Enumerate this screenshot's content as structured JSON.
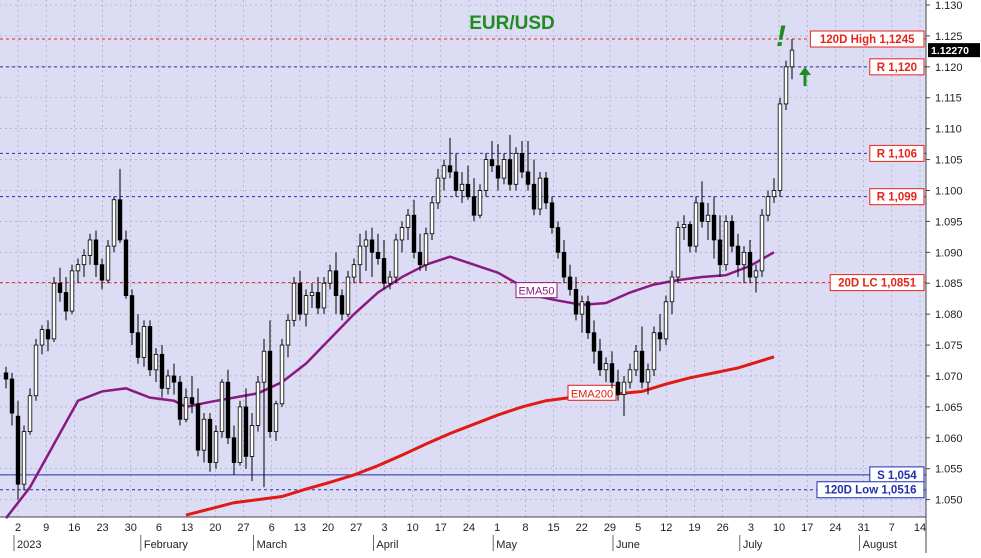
{
  "chart_data": {
    "type": "candlestick",
    "title": "EUR/USD",
    "y_axis": {
      "side": "right",
      "ylim": [
        1.048,
        1.13
      ],
      "ticks": [
        1.05,
        1.055,
        1.06,
        1.065,
        1.07,
        1.075,
        1.08,
        1.085,
        1.09,
        1.095,
        1.1,
        1.105,
        1.11,
        1.115,
        1.12,
        1.125,
        1.13
      ],
      "tick_labels": [
        "1.050",
        "1.055",
        "1.060",
        "1.065",
        "1.070",
        "1.075",
        "1.080",
        "1.085",
        "1.090",
        "1.095",
        "1.100",
        "1.105",
        "1.110",
        "1.115",
        "1.120",
        "1.125",
        "1.130"
      ]
    },
    "x_axis": {
      "day_labels": [
        {
          "t": 0,
          "label": "2"
        },
        {
          "t": 2,
          "label": "9"
        },
        {
          "t": 4,
          "label": "16"
        },
        {
          "t": 6,
          "label": "23"
        },
        {
          "t": 8,
          "label": "30"
        },
        {
          "t": 10,
          "label": "6"
        },
        {
          "t": 12,
          "label": "13"
        },
        {
          "t": 14,
          "label": "20"
        },
        {
          "t": 16,
          "label": "27"
        },
        {
          "t": 18,
          "label": "6"
        },
        {
          "t": 20,
          "label": "13"
        },
        {
          "t": 22,
          "label": "20"
        },
        {
          "t": 24,
          "label": "27"
        },
        {
          "t": 26,
          "label": "3"
        },
        {
          "t": 28,
          "label": "10"
        },
        {
          "t": 30,
          "label": "17"
        },
        {
          "t": 32,
          "label": "24"
        },
        {
          "t": 34,
          "label": "1"
        },
        {
          "t": 36,
          "label": "8"
        },
        {
          "t": 38,
          "label": "15"
        },
        {
          "t": 40,
          "label": "22"
        },
        {
          "t": 42,
          "label": "29"
        },
        {
          "t": 44,
          "label": "5"
        },
        {
          "t": 46,
          "label": "12"
        },
        {
          "t": 48,
          "label": "19"
        },
        {
          "t": 50,
          "label": "26"
        },
        {
          "t": 52,
          "label": "3"
        },
        {
          "t": 54,
          "label": "10"
        },
        {
          "t": 56,
          "label": "17"
        },
        {
          "t": 58,
          "label": "24"
        },
        {
          "t": 60,
          "label": "31"
        },
        {
          "t": 62,
          "label": "7"
        },
        {
          "t": 64,
          "label": "14"
        }
      ],
      "month_labels": [
        {
          "t": 0,
          "label": "2023"
        },
        {
          "t": 9,
          "label": "February"
        },
        {
          "t": 17,
          "label": "March"
        },
        {
          "t": 25.5,
          "label": "April"
        },
        {
          "t": 34,
          "label": "May"
        },
        {
          "t": 42.5,
          "label": "June"
        },
        {
          "t": 51.5,
          "label": "July"
        },
        {
          "t": 60,
          "label": "August"
        }
      ]
    },
    "levels": [
      {
        "label": "120D High 1,1245",
        "value": 1.1245,
        "color": "#e8231a",
        "style": "dashed"
      },
      {
        "label": "R 1,120",
        "value": 1.12,
        "color": "#e8231a",
        "style": "dashed",
        "line_color": "#2030b0"
      },
      {
        "label": "R 1,106",
        "value": 1.106,
        "color": "#e8231a",
        "style": "dashed",
        "line_color": "#2030b0"
      },
      {
        "label": "R 1,099",
        "value": 1.099,
        "color": "#e8231a",
        "style": "dashed",
        "line_color": "#2030b0"
      },
      {
        "label": "20D LC 1,0851",
        "value": 1.0851,
        "color": "#e8231a",
        "style": "dashed"
      },
      {
        "label": "S 1,054",
        "value": 1.054,
        "color": "#2030b0",
        "style": "solid"
      },
      {
        "label": "120D Low 1,0516",
        "value": 1.0516,
        "color": "#2030b0",
        "style": "dashed"
      }
    ],
    "last_price": {
      "label": "1.12270",
      "value": 1.1227
    },
    "annotations": {
      "exclamation": "!",
      "arrow": "up"
    },
    "ohlc": [
      [
        1.0705,
        1.0715,
        1.068,
        1.0695
      ],
      [
        1.0695,
        1.0705,
        1.062,
        1.064
      ],
      [
        1.0635,
        1.066,
        1.05,
        1.0525
      ],
      [
        1.0525,
        1.062,
        1.0515,
        1.061
      ],
      [
        1.061,
        1.068,
        1.0605,
        1.0668
      ],
      [
        1.0668,
        1.076,
        1.066,
        1.075
      ],
      [
        1.075,
        1.0782,
        1.0735,
        1.0775
      ],
      [
        1.0775,
        1.079,
        1.074,
        1.076
      ],
      [
        1.076,
        1.086,
        1.0755,
        1.085
      ],
      [
        1.085,
        1.0875,
        1.082,
        1.0835
      ],
      [
        1.0835,
        1.086,
        1.079,
        1.0805
      ],
      [
        1.0805,
        1.088,
        1.08,
        1.087
      ],
      [
        1.087,
        1.089,
        1.085,
        1.088
      ],
      [
        1.088,
        1.0905,
        1.086,
        1.0895
      ],
      [
        1.0895,
        1.093,
        1.088,
        1.092
      ],
      [
        1.092,
        1.0935,
        1.086,
        1.088
      ],
      [
        1.088,
        1.089,
        1.084,
        1.0855
      ],
      [
        1.0855,
        1.092,
        1.085,
        1.091
      ],
      [
        1.091,
        1.099,
        1.09,
        1.0985
      ],
      [
        1.0985,
        1.1035,
        1.0915,
        1.092
      ],
      [
        1.092,
        1.0935,
        1.0825,
        1.083
      ],
      [
        1.083,
        1.084,
        1.075,
        1.077
      ],
      [
        1.077,
        1.08,
        1.072,
        1.073
      ],
      [
        1.073,
        1.079,
        1.0715,
        1.078
      ],
      [
        1.078,
        1.079,
        1.07,
        1.071
      ],
      [
        1.071,
        1.0745,
        1.069,
        1.0735
      ],
      [
        1.0735,
        1.075,
        1.0665,
        1.068
      ],
      [
        1.068,
        1.071,
        1.067,
        1.07
      ],
      [
        1.07,
        1.072,
        1.067,
        1.069
      ],
      [
        1.069,
        1.07,
        1.062,
        1.063
      ],
      [
        1.063,
        1.068,
        1.0625,
        1.0665
      ],
      [
        1.0665,
        1.07,
        1.064,
        1.0655
      ],
      [
        1.0655,
        1.068,
        1.057,
        1.058
      ],
      [
        1.058,
        1.064,
        1.056,
        1.063
      ],
      [
        1.063,
        1.064,
        1.0545,
        1.056
      ],
      [
        1.056,
        1.062,
        1.055,
        1.061
      ],
      [
        1.061,
        1.0695,
        1.06,
        1.069
      ],
      [
        1.069,
        1.071,
        1.059,
        1.06
      ],
      [
        1.06,
        1.062,
        1.054,
        1.056
      ],
      [
        1.056,
        1.066,
        1.0555,
        1.065
      ],
      [
        1.065,
        1.068,
        1.055,
        1.057
      ],
      [
        1.057,
        1.064,
        1.053,
        1.062
      ],
      [
        1.062,
        1.07,
        1.061,
        1.069
      ],
      [
        1.069,
        1.076,
        1.052,
        1.074
      ],
      [
        1.074,
        1.079,
        1.06,
        1.061
      ],
      [
        1.061,
        1.066,
        1.0595,
        1.0655
      ],
      [
        1.0655,
        1.076,
        1.065,
        1.075
      ],
      [
        1.075,
        1.08,
        1.073,
        1.079
      ],
      [
        1.079,
        1.086,
        1.078,
        1.085
      ],
      [
        1.085,
        1.087,
        1.079,
        1.08
      ],
      [
        1.08,
        1.084,
        1.078,
        1.083
      ],
      [
        1.083,
        1.085,
        1.081,
        1.0835
      ],
      [
        1.0835,
        1.086,
        1.08,
        1.081
      ],
      [
        1.081,
        1.086,
        1.08,
        1.085
      ],
      [
        1.085,
        1.088,
        1.084,
        1.087
      ],
      [
        1.087,
        1.09,
        1.08,
        1.083
      ],
      [
        1.083,
        1.084,
        1.079,
        1.08
      ],
      [
        1.08,
        1.087,
        1.0795,
        1.086
      ],
      [
        1.086,
        1.089,
        1.085,
        1.088
      ],
      [
        1.088,
        1.093,
        1.085,
        1.091
      ],
      [
        1.091,
        1.0935,
        1.087,
        1.092
      ],
      [
        1.092,
        1.094,
        1.086,
        1.09
      ],
      [
        1.09,
        1.093,
        1.088,
        1.089
      ],
      [
        1.089,
        1.092,
        1.084,
        1.085
      ],
      [
        1.085,
        1.087,
        1.084,
        1.086
      ],
      [
        1.086,
        1.093,
        1.085,
        1.092
      ],
      [
        1.092,
        1.095,
        1.09,
        1.094
      ],
      [
        1.094,
        1.097,
        1.092,
        1.096
      ],
      [
        1.096,
        1.0985,
        1.089,
        1.09
      ],
      [
        1.09,
        1.093,
        1.087,
        1.088
      ],
      [
        1.088,
        1.094,
        1.087,
        1.093
      ],
      [
        1.093,
        1.099,
        1.092,
        1.098
      ],
      [
        1.098,
        1.1035,
        1.097,
        1.102
      ],
      [
        1.102,
        1.105,
        1.1,
        1.104
      ],
      [
        1.104,
        1.1085,
        1.102,
        1.103
      ],
      [
        1.103,
        1.106,
        1.099,
        1.1
      ],
      [
        1.1,
        1.103,
        1.098,
        1.101
      ],
      [
        1.101,
        1.104,
        1.0985,
        1.099
      ],
      [
        1.099,
        1.102,
        1.095,
        1.096
      ],
      [
        1.096,
        1.101,
        1.0955,
        1.1
      ],
      [
        1.1,
        1.106,
        1.099,
        1.105
      ],
      [
        1.105,
        1.108,
        1.103,
        1.104
      ],
      [
        1.104,
        1.1075,
        1.1,
        1.102
      ],
      [
        1.102,
        1.106,
        1.101,
        1.105
      ],
      [
        1.105,
        1.109,
        1.1,
        1.101
      ],
      [
        1.101,
        1.107,
        1.1,
        1.106
      ],
      [
        1.106,
        1.108,
        1.102,
        1.103
      ],
      [
        1.103,
        1.108,
        1.1,
        1.101
      ],
      [
        1.101,
        1.105,
        1.096,
        1.097
      ],
      [
        1.097,
        1.103,
        1.096,
        1.102
      ],
      [
        1.102,
        1.103,
        1.097,
        1.098
      ],
      [
        1.098,
        1.099,
        1.093,
        1.094
      ],
      [
        1.094,
        1.095,
        1.089,
        1.09
      ],
      [
        1.09,
        1.092,
        1.085,
        1.086
      ],
      [
        1.086,
        1.088,
        1.083,
        1.084
      ],
      [
        1.084,
        1.086,
        1.079,
        1.08
      ],
      [
        1.08,
        1.083,
        1.077,
        1.082
      ],
      [
        1.082,
        1.083,
        1.076,
        1.077
      ],
      [
        1.077,
        1.079,
        1.072,
        1.074
      ],
      [
        1.074,
        1.076,
        1.07,
        1.071
      ],
      [
        1.071,
        1.073,
        1.069,
        1.072
      ],
      [
        1.072,
        1.074,
        1.068,
        1.069
      ],
      [
        1.069,
        1.071,
        1.066,
        1.067
      ],
      [
        1.067,
        1.07,
        1.0635,
        1.069
      ],
      [
        1.069,
        1.072,
        1.068,
        1.071
      ],
      [
        1.071,
        1.075,
        1.07,
        1.074
      ],
      [
        1.074,
        1.078,
        1.068,
        1.069
      ],
      [
        1.069,
        1.072,
        1.067,
        1.071
      ],
      [
        1.071,
        1.078,
        1.07,
        1.077
      ],
      [
        1.077,
        1.08,
        1.074,
        1.076
      ],
      [
        1.076,
        1.083,
        1.075,
        1.082
      ],
      [
        1.082,
        1.087,
        1.08,
        1.086
      ],
      [
        1.086,
        1.095,
        1.085,
        1.094
      ],
      [
        1.094,
        1.096,
        1.092,
        1.0945
      ],
      [
        1.0945,
        1.095,
        1.09,
        1.091
      ],
      [
        1.091,
        1.099,
        1.09,
        1.098
      ],
      [
        1.098,
        1.1015,
        1.094,
        1.095
      ],
      [
        1.095,
        1.098,
        1.092,
        1.096
      ],
      [
        1.096,
        1.099,
        1.089,
        1.092
      ],
      [
        1.092,
        1.096,
        1.086,
        1.088
      ],
      [
        1.088,
        1.096,
        1.087,
        1.095
      ],
      [
        1.095,
        1.096,
        1.09,
        1.091
      ],
      [
        1.091,
        1.093,
        1.086,
        1.088
      ],
      [
        1.088,
        1.091,
        1.085,
        1.09
      ],
      [
        1.09,
        1.092,
        1.085,
        1.086
      ],
      [
        1.086,
        1.088,
        1.0835,
        1.087
      ],
      [
        1.087,
        1.097,
        1.086,
        1.096
      ],
      [
        1.096,
        1.1,
        1.095,
        1.099
      ],
      [
        1.099,
        1.102,
        1.098,
        1.1
      ],
      [
        1.1,
        1.115,
        1.099,
        1.114
      ],
      [
        1.114,
        1.121,
        1.113,
        1.12
      ],
      [
        1.12,
        1.1245,
        1.118,
        1.1227
      ]
    ],
    "series": [
      {
        "name": "EMA50",
        "color": "#8a1a82",
        "type": "line",
        "x": [
          0,
          4,
          8,
          12,
          16,
          20,
          24,
          28,
          30,
          34,
          38,
          42,
          46,
          50,
          54,
          58,
          62,
          66,
          70,
          74,
          78,
          82,
          86,
          88,
          92,
          96,
          100,
          104,
          108,
          112,
          116,
          120,
          124,
          128
        ],
        "values": [
          1.047,
          1.052,
          1.059,
          1.066,
          1.0675,
          1.068,
          1.0665,
          1.066,
          1.065,
          1.0658,
          1.0665,
          1.0672,
          1.069,
          1.072,
          1.076,
          1.08,
          1.0835,
          1.086,
          1.088,
          1.0893,
          1.088,
          1.0867,
          1.0845,
          1.083,
          1.0822,
          1.0815,
          1.0818,
          1.0835,
          1.0848,
          1.0855,
          1.086,
          1.0863,
          1.0878,
          1.09
        ]
      },
      {
        "name": "EMA200",
        "color": "#e01a14",
        "type": "line",
        "x": [
          30,
          34,
          38,
          42,
          46,
          50,
          54,
          58,
          62,
          66,
          70,
          74,
          78,
          82,
          86,
          90,
          94,
          98,
          102,
          106,
          110,
          114,
          118,
          122,
          126,
          128
        ],
        "values": [
          1.0475,
          1.0485,
          1.0495,
          1.05,
          1.0505,
          1.0517,
          1.0528,
          1.054,
          1.0555,
          1.0572,
          1.059,
          1.0607,
          1.0622,
          1.0637,
          1.065,
          1.066,
          1.0665,
          1.0668,
          1.0671,
          1.0675,
          1.0687,
          1.0697,
          1.0705,
          1.0713,
          1.0725,
          1.0731
        ]
      }
    ]
  }
}
